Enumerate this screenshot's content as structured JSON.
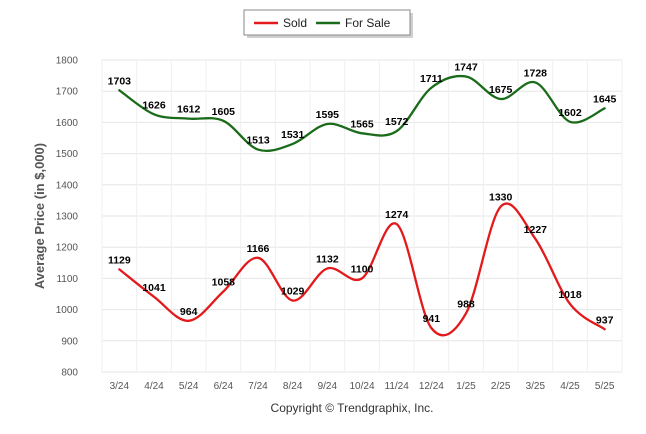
{
  "chart_data": {
    "type": "line",
    "title": "",
    "xlabel": "",
    "ylabel": "Average Price (in $,000)",
    "credit": "Copyright © Trendgraphix, Inc.",
    "categories": [
      "3/24",
      "4/24",
      "5/24",
      "6/24",
      "7/24",
      "8/24",
      "9/24",
      "10/24",
      "11/24",
      "12/24",
      "1/25",
      "2/25",
      "3/25",
      "4/25",
      "5/25"
    ],
    "ylim": [
      800,
      1800
    ],
    "yticks": [
      800,
      900,
      1000,
      1100,
      1200,
      1300,
      1400,
      1500,
      1600,
      1700,
      1800
    ],
    "grid": true,
    "legend_position": "top-center",
    "smooth": true,
    "series": [
      {
        "name": "Sold",
        "color": "#e31a1c",
        "values": [
          1129,
          1041,
          964,
          1058,
          1166,
          1029,
          1132,
          1100,
          1274,
          941,
          988,
          1330,
          1227,
          1018,
          937
        ]
      },
      {
        "name": "For Sale",
        "color": "#1a6b1a",
        "values": [
          1703,
          1626,
          1612,
          1605,
          1513,
          1531,
          1595,
          1565,
          1572,
          1711,
          1747,
          1675,
          1728,
          1602,
          1645
        ]
      }
    ]
  }
}
